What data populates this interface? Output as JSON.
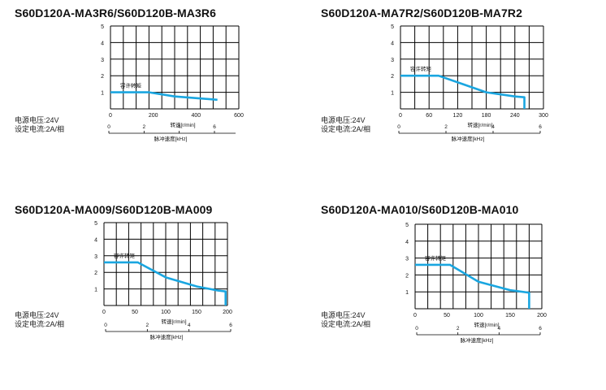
{
  "colors": {
    "curve": "#1aa6e0",
    "grid": "#000000",
    "text": "#111111"
  },
  "panels": [
    {
      "title": "S60D120A-MA3R6/S60D120B-MA3R6",
      "spec_voltage": "电源电压:24V",
      "spec_current": "设定电流:2A/相"
    },
    {
      "title": "S60D120A-MA7R2/S60D120B-MA7R2",
      "spec_voltage": "电源电压:24V",
      "spec_current": "设定电流:2A/相"
    },
    {
      "title": "S60D120A-MA009/S60D120B-MA009",
      "spec_voltage": "电源电压:24V",
      "spec_current": "设定电流:2A/相"
    },
    {
      "title": "S60D120A-MA010/S60D120B-MA010",
      "spec_voltage": "电源电压:24V",
      "spec_current": "设定电流:2A/相"
    }
  ],
  "chart_data": [
    {
      "type": "line",
      "title": "S60D120A-MA3R6/S60D120B-MA3R6",
      "xlabel": "转速[r/min]",
      "ylabel": "",
      "xlim": [
        0,
        600
      ],
      "ylim": [
        0,
        5
      ],
      "x_ticks": [
        0,
        200,
        400,
        600
      ],
      "y_ticks": [
        1,
        2,
        3,
        4,
        5
      ],
      "grid": true,
      "secondary_axis": {
        "label": "脉冲速度[kHz]",
        "ticks": [
          0,
          2,
          4,
          6
        ],
        "max": 7.2
      },
      "series": [
        {
          "name": "容许转矩",
          "x": [
            0,
            180,
            300,
            500
          ],
          "y": [
            1.0,
            1.0,
            0.75,
            0.55
          ]
        }
      ]
    },
    {
      "type": "line",
      "title": "S60D120A-MA7R2/S60D120B-MA7R2",
      "xlabel": "转速[r/min]",
      "ylabel": "",
      "xlim": [
        0,
        300
      ],
      "ylim": [
        0,
        5
      ],
      "x_ticks": [
        0,
        60,
        120,
        180,
        240,
        300
      ],
      "y_ticks": [
        1,
        2,
        3,
        4,
        5
      ],
      "grid": true,
      "secondary_axis": {
        "label": "脉冲速度[kHz]",
        "ticks": [
          0,
          2,
          4,
          6
        ],
        "max": 6.0
      },
      "series": [
        {
          "name": "容许转矩",
          "x": [
            0,
            80,
            130,
            180,
            240,
            260,
            260
          ],
          "y": [
            2.0,
            2.0,
            1.5,
            1.0,
            0.75,
            0.7,
            0
          ]
        }
      ]
    },
    {
      "type": "line",
      "title": "S60D120A-MA009/S60D120B-MA009",
      "xlabel": "转速[r/min]",
      "ylabel": "",
      "xlim": [
        0,
        200
      ],
      "ylim": [
        0,
        5
      ],
      "x_ticks": [
        0,
        50,
        100,
        150,
        200
      ],
      "y_ticks": [
        1,
        2,
        3,
        4,
        5
      ],
      "grid": true,
      "secondary_axis": {
        "label": "脉冲速度[kHz]",
        "ticks": [
          0,
          2,
          4,
          6
        ],
        "max": 6.0
      },
      "series": [
        {
          "name": "容许转矩",
          "x": [
            0,
            55,
            100,
            150,
            185,
            197,
            197
          ],
          "y": [
            2.6,
            2.6,
            1.7,
            1.15,
            0.9,
            0.85,
            0
          ]
        }
      ]
    },
    {
      "type": "line",
      "title": "S60D120A-MA010/S60D120B-MA010",
      "xlabel": "转速[r/min]",
      "ylabel": "",
      "xlim": [
        0,
        200
      ],
      "ylim": [
        0,
        5
      ],
      "x_ticks": [
        0,
        50,
        100,
        150,
        200
      ],
      "y_ticks": [
        1,
        2,
        3,
        4,
        5
      ],
      "grid": true,
      "secondary_axis": {
        "label": "脉冲速度[kHz]",
        "ticks": [
          0,
          2,
          4,
          6
        ],
        "max": 6.0
      },
      "series": [
        {
          "name": "容许转矩",
          "x": [
            0,
            55,
            100,
            150,
            180,
            180
          ],
          "y": [
            2.6,
            2.6,
            1.6,
            1.1,
            0.95,
            0
          ]
        }
      ]
    }
  ]
}
